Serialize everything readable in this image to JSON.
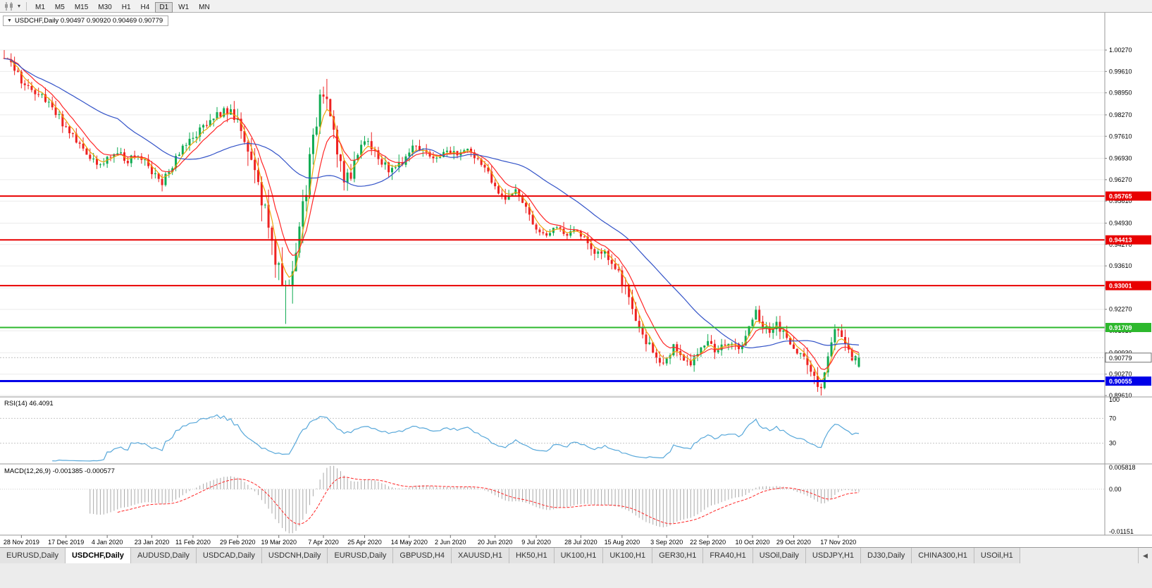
{
  "toolbar": {
    "timeframes": [
      "M1",
      "M5",
      "M15",
      "M30",
      "H1",
      "H4",
      "D1",
      "W1",
      "MN"
    ],
    "active_timeframe": "D1"
  },
  "symbol_box": {
    "text": "USDCHF,Daily 0.90497 0.90920 0.90469 0.90779"
  },
  "price_axis_labels": [
    "1.00270",
    "0.99610",
    "0.98950",
    "0.98270",
    "0.97610",
    "0.96930",
    "0.96270",
    "0.95610",
    "0.94930",
    "0.94270",
    "0.93610",
    "0.92930",
    "0.92270",
    "0.91610",
    "0.90930",
    "0.90270",
    "0.89610"
  ],
  "levels": [
    {
      "label": "0.95765",
      "value": 0.95765,
      "color": "#e80000",
      "width": 2
    },
    {
      "label": "0.94413",
      "value": 0.94413,
      "color": "#e80000",
      "width": 2
    },
    {
      "label": "0.93001",
      "value": 0.93001,
      "color": "#e80000",
      "width": 2
    },
    {
      "label": "0.91709",
      "value": 0.91709,
      "color": "#2db82d",
      "width": 2
    },
    {
      "label": "0.90055",
      "value": 0.90055,
      "color": "#0000e8",
      "width": 3
    }
  ],
  "current_price_tag": "0.90779",
  "date_axis": [
    "28 Nov 2019",
    "17 Dec 2019",
    "4 Jan 2020",
    "23 Jan 2020",
    "11 Feb 2020",
    "29 Feb 2020",
    "19 Mar 2020",
    "7 Apr 2020",
    "25 Apr 2020",
    "14 May 2020",
    "2 Jun 2020",
    "20 Jun 2020",
    "9 Jul 2020",
    "28 Jul 2020",
    "15 Aug 2020",
    "3 Sep 2020",
    "22 Sep 2020",
    "10 Oct 2020",
    "29 Oct 2020",
    "17 Nov 2020"
  ],
  "rsi_panel": {
    "label": "RSI(14) 46.4091",
    "scale_labels": [
      "100",
      "70",
      "30"
    ]
  },
  "macd_panel": {
    "label": "MACD(12,26,9) -0.001385 -0.000577",
    "scale_labels": [
      "0.005818",
      "0.00",
      "-0.01151"
    ]
  },
  "tabs": [
    {
      "label": "EURUSD,Daily",
      "active": false
    },
    {
      "label": "USDCHF,Daily",
      "active": true
    },
    {
      "label": "AUDUSD,Daily",
      "active": false
    },
    {
      "label": "USDCAD,Daily",
      "active": false
    },
    {
      "label": "USDCNH,Daily",
      "active": false
    },
    {
      "label": "EURUSD,Daily",
      "active": false
    },
    {
      "label": "GBPUSD,H4",
      "active": false
    },
    {
      "label": "XAUUSD,H1",
      "active": false
    },
    {
      "label": "HK50,H1",
      "active": false
    },
    {
      "label": "UK100,H1",
      "active": false
    },
    {
      "label": "UK100,H1",
      "active": false
    },
    {
      "label": "GER30,H1",
      "active": false
    },
    {
      "label": "FRA40,H1",
      "active": false
    },
    {
      "label": "USOil,Daily",
      "active": false
    },
    {
      "label": "USDJPY,H1",
      "active": false
    },
    {
      "label": "DJ30,Daily",
      "active": false
    },
    {
      "label": "CHINA300,H1",
      "active": false
    },
    {
      "label": "USOil,H1",
      "active": false
    }
  ],
  "tab_scroll_icon": "◀",
  "chart_data": {
    "type": "candlestick",
    "title": "USDCHF,Daily",
    "last_ohlc": {
      "open": 0.90497,
      "high": 0.9092,
      "low": 0.90469,
      "close": 0.90779
    },
    "y_range": [
      0.8961,
      1.0027
    ],
    "x_range_dates": [
      "28 Nov 2019",
      "25 Nov 2020"
    ],
    "num_candles": 250,
    "price_path": [
      [
        0,
        1.0
      ],
      [
        0.01,
        0.9975
      ],
      [
        0.02,
        0.9935
      ],
      [
        0.035,
        0.9905
      ],
      [
        0.05,
        0.9868
      ],
      [
        0.065,
        0.9815
      ],
      [
        0.08,
        0.976
      ],
      [
        0.095,
        0.9705
      ],
      [
        0.11,
        0.9668
      ],
      [
        0.12,
        0.969
      ],
      [
        0.13,
        0.9712
      ],
      [
        0.145,
        0.9688
      ],
      [
        0.16,
        0.97
      ],
      [
        0.175,
        0.9645
      ],
      [
        0.185,
        0.9618
      ],
      [
        0.2,
        0.9688
      ],
      [
        0.215,
        0.9745
      ],
      [
        0.23,
        0.978
      ],
      [
        0.245,
        0.9822
      ],
      [
        0.26,
        0.9842
      ],
      [
        0.272,
        0.9815
      ],
      [
        0.282,
        0.9745
      ],
      [
        0.292,
        0.965
      ],
      [
        0.302,
        0.956
      ],
      [
        0.312,
        0.945
      ],
      [
        0.322,
        0.933
      ],
      [
        0.33,
        0.927
      ],
      [
        0.338,
        0.936
      ],
      [
        0.346,
        0.949
      ],
      [
        0.354,
        0.962
      ],
      [
        0.362,
        0.976
      ],
      [
        0.37,
        0.9868
      ],
      [
        0.376,
        0.9885
      ],
      [
        0.384,
        0.98
      ],
      [
        0.392,
        0.968
      ],
      [
        0.4,
        0.9618
      ],
      [
        0.41,
        0.9672
      ],
      [
        0.42,
        0.9748
      ],
      [
        0.432,
        0.9718
      ],
      [
        0.444,
        0.9672
      ],
      [
        0.456,
        0.9648
      ],
      [
        0.468,
        0.9692
      ],
      [
        0.48,
        0.9738
      ],
      [
        0.492,
        0.9712
      ],
      [
        0.504,
        0.9688
      ],
      [
        0.516,
        0.9726
      ],
      [
        0.528,
        0.9705
      ],
      [
        0.54,
        0.9722
      ],
      [
        0.552,
        0.9688
      ],
      [
        0.564,
        0.9655
      ],
      [
        0.576,
        0.9598
      ],
      [
        0.586,
        0.9562
      ],
      [
        0.598,
        0.96
      ],
      [
        0.61,
        0.9545
      ],
      [
        0.622,
        0.9468
      ],
      [
        0.634,
        0.9452
      ],
      [
        0.646,
        0.9488
      ],
      [
        0.658,
        0.9448
      ],
      [
        0.67,
        0.9472
      ],
      [
        0.682,
        0.9428
      ],
      [
        0.692,
        0.939
      ],
      [
        0.702,
        0.9405
      ],
      [
        0.712,
        0.9368
      ],
      [
        0.722,
        0.9318
      ],
      [
        0.732,
        0.9255
      ],
      [
        0.742,
        0.9178
      ],
      [
        0.752,
        0.9128
      ],
      [
        0.762,
        0.9082
      ],
      [
        0.772,
        0.9058
      ],
      [
        0.782,
        0.9115
      ],
      [
        0.792,
        0.9072
      ],
      [
        0.802,
        0.9052
      ],
      [
        0.812,
        0.9098
      ],
      [
        0.822,
        0.9135
      ],
      [
        0.832,
        0.9092
      ],
      [
        0.842,
        0.9112
      ],
      [
        0.852,
        0.9128
      ],
      [
        0.862,
        0.9105
      ],
      [
        0.872,
        0.9172
      ],
      [
        0.878,
        0.9228
      ],
      [
        0.886,
        0.9188
      ],
      [
        0.894,
        0.9152
      ],
      [
        0.902,
        0.9178
      ],
      [
        0.912,
        0.9162
      ],
      [
        0.922,
        0.9122
      ],
      [
        0.932,
        0.9085
      ],
      [
        0.942,
        0.9062
      ],
      [
        0.95,
        0.9005
      ],
      [
        0.956,
        0.8972
      ],
      [
        0.962,
        0.9058
      ],
      [
        0.97,
        0.9148
      ],
      [
        0.977,
        0.9175
      ],
      [
        0.984,
        0.9122
      ],
      [
        0.991,
        0.9082
      ],
      [
        1,
        0.90779
      ]
    ],
    "volatility_path": [
      [
        0,
        0.0042
      ],
      [
        0.25,
        0.004
      ],
      [
        0.28,
        0.0085
      ],
      [
        0.33,
        0.0125
      ],
      [
        0.38,
        0.011
      ],
      [
        0.42,
        0.006
      ],
      [
        0.5,
        0.0038
      ],
      [
        0.6,
        0.004
      ],
      [
        0.7,
        0.0042
      ],
      [
        0.74,
        0.0058
      ],
      [
        0.8,
        0.0045
      ],
      [
        0.87,
        0.004
      ],
      [
        0.95,
        0.006
      ],
      [
        1,
        0.0042
      ]
    ],
    "key_extremes": [
      {
        "t": 0.002,
        "high": 1.0027
      },
      {
        "t": 0.33,
        "low": 0.9182
      },
      {
        "t": 0.376,
        "high": 0.9901
      },
      {
        "t": 0.956,
        "low": 0.8961
      }
    ],
    "moving_averages": [
      {
        "type": "ema",
        "period": 4,
        "color": "#efa50a"
      },
      {
        "type": "ema",
        "period": 9,
        "color": "#ff2626"
      },
      {
        "type": "sma",
        "period": 34,
        "color": "#3353c8"
      }
    ],
    "candle_up_color": "#0fab52",
    "candle_down_color": "#ee2222",
    "support_resistance": [
      0.95765,
      0.94413,
      0.93001,
      0.91709,
      0.90055
    ],
    "rsi": {
      "period": 14,
      "current": 46.4091,
      "levels": [
        70,
        30
      ],
      "color": "#58a8da",
      "range": [
        0,
        100
      ]
    },
    "macd": {
      "fast": 12,
      "slow": 26,
      "signal": 9,
      "main": -0.001385,
      "signal_value": -0.000577,
      "scale_min": -0.01151,
      "scale_max": 0.005818,
      "histogram_color": "#a8a8a8",
      "signal_color": "#ff2626"
    }
  }
}
